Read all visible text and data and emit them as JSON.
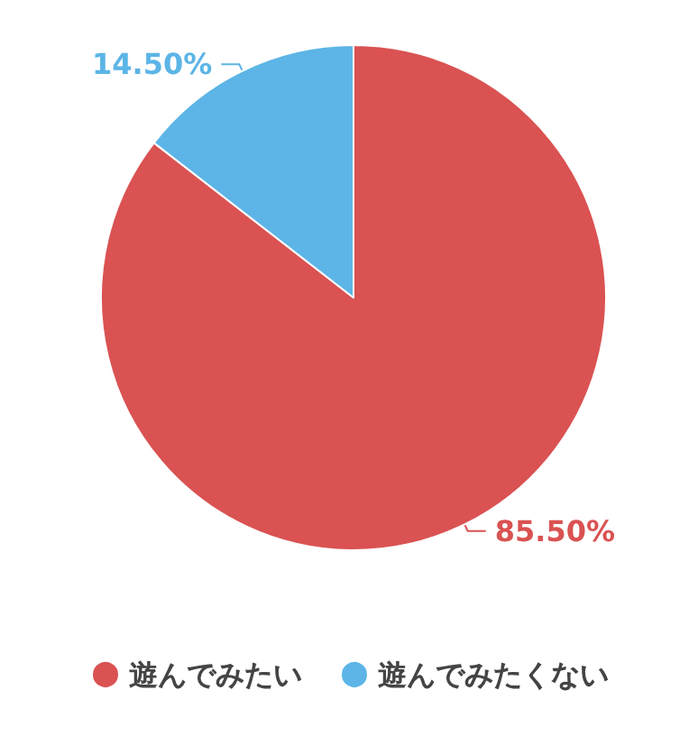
{
  "chart_data": {
    "type": "pie",
    "categories": [
      "遊んでみたい",
      "遊んでみたくない"
    ],
    "values": [
      85.5,
      14.5
    ],
    "colors": [
      "#da5252",
      "#5cb5e6"
    ],
    "value_labels": [
      "85.50%",
      "14.50%"
    ],
    "legend": "bottom"
  }
}
